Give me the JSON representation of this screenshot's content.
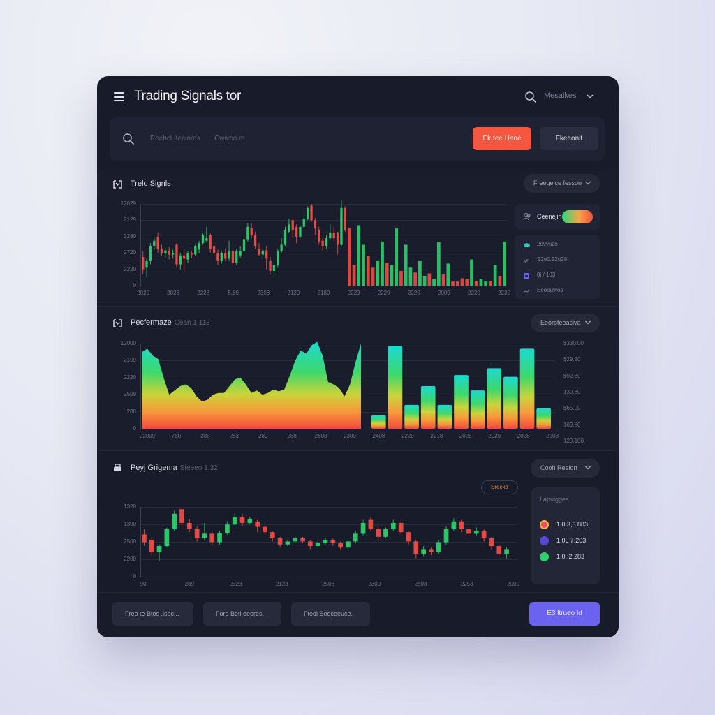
{
  "header": {
    "title": "Trading Signals tor",
    "menu_icon": "hamburger-icon",
    "search_icon": "search-icon",
    "select_label": "Mesalkes"
  },
  "toolbar": {
    "search_placeholder": "Reebcl Iteciores",
    "filter_placeholder": "Cwivco m",
    "primary_button": "Ek tee Uane",
    "secondary_button": "Fkeeonit"
  },
  "panels": {
    "signals": {
      "title": "Trelo Signls",
      "dropdown": "Freegelce fesson",
      "toggle_card": {
        "label": "Ceenejin",
        "toggle_on": true
      },
      "info_rows": [
        {
          "icon": "cloud-icon",
          "text": "2ovyuzo",
          "color": "#2fc7c3"
        },
        {
          "icon": "signal-icon",
          "text": "S2e0.22u28",
          "color": "#6d7186"
        },
        {
          "icon": "database-icon",
          "text": "8i / 103",
          "color": "#6b63f0"
        },
        {
          "icon": "trend-icon",
          "text": "Eeoouwos",
          "color": "#6d7186"
        }
      ]
    },
    "performance": {
      "title": "Pecfermaze",
      "subtitle": "Cean 1.113",
      "dropdown": "Eeoroteeaciva"
    },
    "price": {
      "title": "Peyj Grigema",
      "subtitle": "Steeeo 1.32",
      "dropdown": "Cooh Reelort",
      "badge": "Srecka",
      "legend_title": "Lapuigges",
      "legend": [
        {
          "color": "#f0604a",
          "ring": "#f3b338",
          "text": "1.0.3,3.883"
        },
        {
          "color": "#5847d6",
          "ring": "#5847d6",
          "text": "1.0L 7.203"
        },
        {
          "color": "#2fcf6a",
          "ring": "#2fcf6a",
          "text": "1.0.:2.283"
        }
      ]
    }
  },
  "footer": {
    "buttons": [
      "Freo te Btos .lsbc...",
      "Fore Beti eeeres.",
      "Ftedi Seoceeuce."
    ],
    "primary_button": "E3 ltrueo ld"
  },
  "colors": {
    "up": "#2fd06b",
    "down": "#f04e45",
    "accent_orange": "#f5563f",
    "accent_purple": "#6c62f0"
  },
  "chart_data": [
    {
      "type": "candlestick+bar",
      "title": "Trelo Signls",
      "ylabels": [
        "12029",
        "2129",
        "2280",
        "2720",
        "2220",
        "0"
      ],
      "xlabels": [
        "2020",
        "3028",
        "2228",
        "5.89",
        "2308",
        "2129",
        "2189",
        "2229",
        "2229",
        "2220",
        "2009",
        "2220",
        "2220"
      ],
      "candles": [
        [
          0.35,
          0.2,
          0.42,
          0.14,
          0
        ],
        [
          0.22,
          0.3,
          0.33,
          0.1,
          1
        ],
        [
          0.3,
          0.48,
          0.52,
          0.26,
          1
        ],
        [
          0.48,
          0.55,
          0.6,
          0.44,
          1
        ],
        [
          0.6,
          0.45,
          0.65,
          0.4,
          0
        ],
        [
          0.45,
          0.4,
          0.5,
          0.36,
          0
        ],
        [
          0.4,
          0.43,
          0.46,
          0.34,
          1
        ],
        [
          0.43,
          0.38,
          0.47,
          0.32,
          0
        ],
        [
          0.38,
          0.4,
          0.44,
          0.33,
          1
        ],
        [
          0.5,
          0.26,
          0.52,
          0.22,
          0
        ],
        [
          0.26,
          0.37,
          0.4,
          0.2,
          1
        ],
        [
          0.37,
          0.33,
          0.45,
          0.16,
          0
        ],
        [
          0.32,
          0.4,
          0.42,
          0.28,
          1
        ],
        [
          0.4,
          0.38,
          0.43,
          0.34,
          0
        ],
        [
          0.38,
          0.48,
          0.5,
          0.36,
          1
        ],
        [
          0.44,
          0.52,
          0.55,
          0.4,
          1
        ],
        [
          0.52,
          0.62,
          0.64,
          0.5,
          1
        ],
        [
          0.58,
          0.55,
          0.72,
          0.54,
          1
        ],
        [
          0.62,
          0.45,
          0.64,
          0.4,
          0
        ],
        [
          0.48,
          0.4,
          0.5,
          0.37,
          0
        ],
        [
          0.4,
          0.3,
          0.44,
          0.25,
          0
        ],
        [
          0.3,
          0.4,
          0.42,
          0.27,
          1
        ],
        [
          0.4,
          0.33,
          0.45,
          0.3,
          0
        ],
        [
          0.33,
          0.42,
          0.55,
          0.3,
          1
        ],
        [
          0.42,
          0.28,
          0.44,
          0.25,
          0
        ],
        [
          0.28,
          0.42,
          0.45,
          0.25,
          1
        ],
        [
          0.42,
          0.37,
          0.48,
          0.34,
          1
        ],
        [
          0.42,
          0.56,
          0.58,
          0.4,
          1
        ],
        [
          0.56,
          0.72,
          0.76,
          0.54,
          1
        ],
        [
          0.7,
          0.62,
          0.76,
          0.58,
          0
        ],
        [
          0.62,
          0.48,
          0.66,
          0.45,
          0
        ],
        [
          0.45,
          0.38,
          0.52,
          0.36,
          0
        ],
        [
          0.38,
          0.43,
          0.45,
          0.33,
          1
        ],
        [
          0.43,
          0.33,
          0.48,
          0.2,
          0
        ],
        [
          0.3,
          0.18,
          0.35,
          0.14,
          0
        ],
        [
          0.18,
          0.25,
          0.28,
          0.1,
          1
        ],
        [
          0.25,
          0.42,
          0.45,
          0.22,
          1
        ],
        [
          0.42,
          0.5,
          0.58,
          0.4,
          1
        ],
        [
          0.5,
          0.68,
          0.72,
          0.48,
          1
        ],
        [
          0.66,
          0.75,
          0.82,
          0.64,
          1
        ],
        [
          0.8,
          0.68,
          0.82,
          0.6,
          0
        ],
        [
          0.72,
          0.6,
          0.75,
          0.52,
          0
        ],
        [
          0.6,
          0.72,
          0.74,
          0.58,
          1
        ],
        [
          0.72,
          0.82,
          0.84,
          0.7,
          1
        ],
        [
          0.82,
          0.95,
          0.97,
          0.8,
          1
        ],
        [
          0.98,
          0.8,
          1.0,
          0.78,
          0
        ],
        [
          0.8,
          0.7,
          0.83,
          0.62,
          0
        ],
        [
          0.68,
          0.54,
          0.72,
          0.5,
          0
        ],
        [
          0.55,
          0.48,
          0.58,
          0.42,
          0
        ],
        [
          0.48,
          0.58,
          0.62,
          0.45,
          1
        ],
        [
          0.58,
          0.65,
          0.75,
          0.56,
          1
        ],
        [
          0.65,
          0.58,
          0.72,
          0.54,
          0
        ],
        [
          0.64,
          0.5,
          0.66,
          0.38,
          0
        ],
        [
          0.5,
          0.95,
          1.04,
          0.48,
          1
        ],
        [
          0.95,
          0.68,
          0.97,
          0.66,
          0
        ]
      ],
      "bars": [
        [
          0.7,
          0
        ],
        [
          0.25,
          0
        ],
        [
          0.74,
          1
        ],
        [
          0.5,
          1
        ],
        [
          0.36,
          0
        ],
        [
          0.22,
          0
        ],
        [
          0.3,
          1
        ],
        [
          0.54,
          1
        ],
        [
          0.28,
          0
        ],
        [
          0.25,
          1
        ],
        [
          0.7,
          1
        ],
        [
          0.18,
          0
        ],
        [
          0.5,
          1
        ],
        [
          0.22,
          1
        ],
        [
          0.16,
          0
        ],
        [
          0.3,
          1
        ],
        [
          0.12,
          1
        ],
        [
          0.15,
          0
        ],
        [
          0.08,
          1
        ],
        [
          0.53,
          1
        ],
        [
          0.14,
          0
        ],
        [
          0.27,
          1
        ],
        [
          0.05,
          0
        ],
        [
          0.05,
          0
        ],
        [
          0.09,
          0
        ],
        [
          0.08,
          0
        ],
        [
          0.32,
          1
        ],
        [
          0.06,
          0
        ],
        [
          0.08,
          1
        ],
        [
          0.06,
          1
        ],
        [
          0.06,
          0
        ],
        [
          0.25,
          1
        ],
        [
          0.12,
          0
        ],
        [
          0.54,
          1
        ]
      ]
    },
    {
      "type": "area+bar",
      "title": "Pecfermaze",
      "ylabels_left": [
        "12000",
        "2109",
        "2220",
        "2509",
        "288",
        "0"
      ],
      "ylabels_right": [
        "$330.00",
        "$29.20",
        "$92.80",
        "139.80",
        "$65.00",
        "109.80",
        "120.100"
      ],
      "xlabels": [
        "22009",
        "780",
        "288",
        "283",
        "280",
        "288",
        "2608",
        "2309",
        "2408",
        "2220",
        "2218",
        "2028",
        "2020",
        "2028",
        "2208"
      ],
      "area": [
        0.9,
        0.94,
        0.86,
        0.82,
        0.6,
        0.4,
        0.45,
        0.5,
        0.52,
        0.48,
        0.38,
        0.32,
        0.34,
        0.4,
        0.42,
        0.42,
        0.5,
        0.58,
        0.6,
        0.52,
        0.42,
        0.45,
        0.4,
        0.42,
        0.46,
        0.44,
        0.46,
        0.62,
        0.8,
        0.92,
        0.88,
        0.98,
        1.02,
        0.86,
        0.55,
        0.52,
        0.48,
        0.38,
        0.52,
        0.78,
        1.0
      ],
      "bars": [
        0.16,
        0.97,
        0.28,
        0.5,
        0.28,
        0.63,
        0.45,
        0.71,
        0.61,
        0.94,
        0.24
      ]
    },
    {
      "type": "candlestick",
      "title": "Peyj Grigema",
      "ylabels": [
        "1320",
        "1300",
        "2500",
        "2200",
        "0"
      ],
      "xlabels": [
        "90",
        "289",
        "2323",
        "2128",
        "2508",
        "2300",
        "2508",
        "2258",
        "2000"
      ],
      "candles": [
        [
          0.55,
          0.45,
          0.62,
          0.4,
          0
        ],
        [
          0.48,
          0.32,
          0.5,
          0.28,
          0
        ],
        [
          0.32,
          0.4,
          0.42,
          0.2,
          1
        ],
        [
          0.4,
          0.62,
          0.64,
          0.38,
          1
        ],
        [
          0.62,
          0.82,
          0.86,
          0.6,
          1
        ],
        [
          0.88,
          0.7,
          0.88,
          0.66,
          0
        ],
        [
          0.7,
          0.62,
          0.75,
          0.58,
          0
        ],
        [
          0.62,
          0.5,
          0.66,
          0.46,
          0
        ],
        [
          0.5,
          0.56,
          0.7,
          0.48,
          1
        ],
        [
          0.56,
          0.45,
          0.6,
          0.4,
          0
        ],
        [
          0.45,
          0.57,
          0.6,
          0.42,
          1
        ],
        [
          0.57,
          0.68,
          0.72,
          0.55,
          1
        ],
        [
          0.68,
          0.78,
          0.82,
          0.66,
          1
        ],
        [
          0.78,
          0.7,
          0.82,
          0.66,
          0
        ],
        [
          0.7,
          0.75,
          0.78,
          0.68,
          1
        ],
        [
          0.72,
          0.65,
          0.74,
          0.58,
          0
        ],
        [
          0.65,
          0.58,
          0.68,
          0.55,
          0
        ],
        [
          0.58,
          0.5,
          0.6,
          0.46,
          0
        ],
        [
          0.5,
          0.42,
          0.52,
          0.38,
          0
        ],
        [
          0.42,
          0.46,
          0.48,
          0.4,
          1
        ],
        [
          0.46,
          0.5,
          0.53,
          0.45,
          1
        ],
        [
          0.5,
          0.46,
          0.52,
          0.44,
          0
        ],
        [
          0.46,
          0.4,
          0.48,
          0.36,
          0
        ],
        [
          0.4,
          0.44,
          0.46,
          0.38,
          1
        ],
        [
          0.44,
          0.48,
          0.5,
          0.42,
          1
        ],
        [
          0.48,
          0.44,
          0.5,
          0.4,
          0
        ],
        [
          0.44,
          0.38,
          0.46,
          0.36,
          0
        ],
        [
          0.38,
          0.46,
          0.48,
          0.36,
          1
        ],
        [
          0.46,
          0.56,
          0.6,
          0.44,
          1
        ],
        [
          0.56,
          0.7,
          0.74,
          0.54,
          1
        ],
        [
          0.74,
          0.62,
          0.78,
          0.6,
          0
        ],
        [
          0.62,
          0.52,
          0.65,
          0.48,
          0
        ],
        [
          0.52,
          0.62,
          0.64,
          0.5,
          1
        ],
        [
          0.62,
          0.7,
          0.74,
          0.6,
          1
        ],
        [
          0.7,
          0.58,
          0.72,
          0.55,
          0
        ],
        [
          0.58,
          0.46,
          0.6,
          0.42,
          0
        ],
        [
          0.46,
          0.3,
          0.48,
          0.24,
          0
        ],
        [
          0.3,
          0.36,
          0.4,
          0.26,
          1
        ],
        [
          0.36,
          0.32,
          0.38,
          0.28,
          0
        ],
        [
          0.32,
          0.45,
          0.48,
          0.3,
          1
        ],
        [
          0.45,
          0.62,
          0.66,
          0.42,
          1
        ],
        [
          0.62,
          0.72,
          0.76,
          0.6,
          1
        ],
        [
          0.72,
          0.62,
          0.74,
          0.58,
          0
        ],
        [
          0.62,
          0.56,
          0.66,
          0.52,
          0
        ],
        [
          0.56,
          0.6,
          0.64,
          0.54,
          1
        ],
        [
          0.6,
          0.5,
          0.62,
          0.46,
          0
        ],
        [
          0.5,
          0.4,
          0.52,
          0.36,
          0
        ],
        [
          0.4,
          0.3,
          0.42,
          0.26,
          0
        ],
        [
          0.3,
          0.36,
          0.38,
          0.24,
          1
        ]
      ]
    }
  ]
}
